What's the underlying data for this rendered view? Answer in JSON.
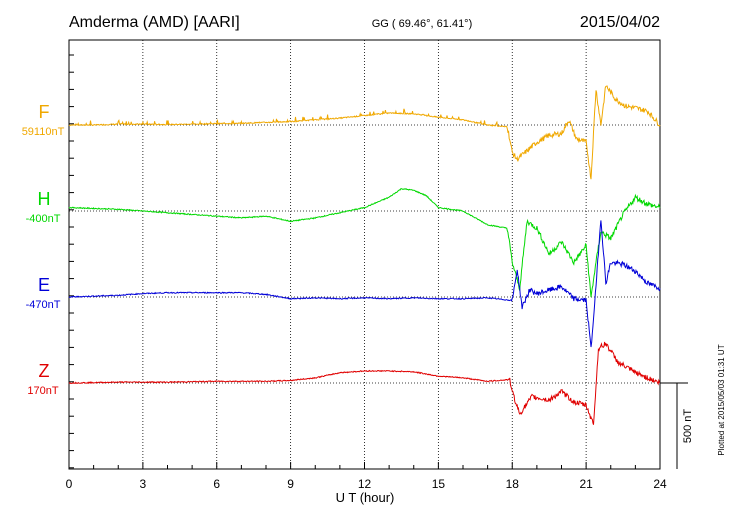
{
  "header": {
    "station": "Amderma (AMD)  [AARI]",
    "coords": "GG ( 69.46°,  61.41°)",
    "date": "2015/04/02"
  },
  "footer_note": "Plotted at 2015/05/03 01:31  UT",
  "chart_data": {
    "type": "line",
    "xlabel": "U T (hour)",
    "x_ticks": [
      0,
      3,
      6,
      9,
      12,
      15,
      18,
      21,
      24
    ],
    "xlim": [
      0,
      24
    ],
    "scale_bar_label": "500 nT",
    "scale_bar_nT": 500,
    "grid": "dotted",
    "series": [
      {
        "name": "F",
        "baseline_label": "59110nT",
        "color": "#f0a800",
        "points": [
          [
            0,
            0
          ],
          [
            1,
            0
          ],
          [
            2,
            5
          ],
          [
            3,
            5
          ],
          [
            4,
            3
          ],
          [
            5,
            5
          ],
          [
            6,
            8
          ],
          [
            7,
            10
          ],
          [
            8,
            15
          ],
          [
            9,
            20
          ],
          [
            10,
            30
          ],
          [
            11,
            40
          ],
          [
            12,
            55
          ],
          [
            13,
            70
          ],
          [
            14,
            65
          ],
          [
            15,
            45
          ],
          [
            16,
            30
          ],
          [
            17,
            0
          ],
          [
            17.8,
            -10
          ],
          [
            18,
            -160
          ],
          [
            18.2,
            -200
          ],
          [
            18.6,
            -150
          ],
          [
            19,
            -100
          ],
          [
            19.5,
            -60
          ],
          [
            20,
            -50
          ],
          [
            20.3,
            30
          ],
          [
            20.6,
            -80
          ],
          [
            21,
            -100
          ],
          [
            21.2,
            -310
          ],
          [
            21.3,
            -50
          ],
          [
            21.4,
            210
          ],
          [
            21.6,
            0
          ],
          [
            21.8,
            230
          ],
          [
            22.2,
            150
          ],
          [
            22.6,
            110
          ],
          [
            23,
            100
          ],
          [
            23.5,
            80
          ],
          [
            24,
            0
          ]
        ]
      },
      {
        "name": "H",
        "baseline_label": "-400nT",
        "color": "#00d800",
        "points": [
          [
            0,
            20
          ],
          [
            1,
            15
          ],
          [
            2,
            10
          ],
          [
            3,
            0
          ],
          [
            4,
            -10
          ],
          [
            5,
            -20
          ],
          [
            6,
            -30
          ],
          [
            7,
            -40
          ],
          [
            8,
            -30
          ],
          [
            9,
            -60
          ],
          [
            10,
            -40
          ],
          [
            11,
            -10
          ],
          [
            12,
            20
          ],
          [
            13,
            80
          ],
          [
            13.5,
            130
          ],
          [
            14,
            120
          ],
          [
            14.5,
            90
          ],
          [
            15,
            20
          ],
          [
            16,
            0
          ],
          [
            17,
            -80
          ],
          [
            17.8,
            -100
          ],
          [
            18,
            -300
          ],
          [
            18.3,
            -450
          ],
          [
            18.6,
            -60
          ],
          [
            19,
            -100
          ],
          [
            19.5,
            -250
          ],
          [
            20,
            -180
          ],
          [
            20.5,
            -300
          ],
          [
            21,
            -200
          ],
          [
            21.2,
            -500
          ],
          [
            21.4,
            -300
          ],
          [
            21.6,
            -120
          ],
          [
            22,
            -160
          ],
          [
            22.5,
            -20
          ],
          [
            23,
            80
          ],
          [
            23.5,
            40
          ],
          [
            24,
            20
          ]
        ]
      },
      {
        "name": "E",
        "baseline_label": "-470nT",
        "color": "#0000d8",
        "points": [
          [
            0,
            0
          ],
          [
            1,
            5
          ],
          [
            2,
            10
          ],
          [
            3,
            20
          ],
          [
            4,
            25
          ],
          [
            5,
            25
          ],
          [
            6,
            25
          ],
          [
            7,
            25
          ],
          [
            8,
            15
          ],
          [
            9,
            -10
          ],
          [
            10,
            -5
          ],
          [
            11,
            -10
          ],
          [
            12,
            -5
          ],
          [
            13,
            -10
          ],
          [
            14,
            -5
          ],
          [
            15,
            -10
          ],
          [
            16,
            -10
          ],
          [
            17,
            -5
          ],
          [
            18,
            -20
          ],
          [
            18.2,
            160
          ],
          [
            18.4,
            -60
          ],
          [
            18.7,
            40
          ],
          [
            19,
            20
          ],
          [
            19.5,
            40
          ],
          [
            20,
            60
          ],
          [
            20.5,
            -10
          ],
          [
            21,
            -20
          ],
          [
            21.2,
            -300
          ],
          [
            21.4,
            60
          ],
          [
            21.6,
            460
          ],
          [
            21.8,
            80
          ],
          [
            22,
            200
          ],
          [
            22.5,
            190
          ],
          [
            23,
            150
          ],
          [
            23.5,
            80
          ],
          [
            24,
            50
          ]
        ]
      },
      {
        "name": "Z",
        "baseline_label": "170nT",
        "color": "#e00000",
        "points": [
          [
            0,
            0
          ],
          [
            2,
            5
          ],
          [
            4,
            5
          ],
          [
            6,
            10
          ],
          [
            8,
            10
          ],
          [
            9,
            15
          ],
          [
            10,
            30
          ],
          [
            11,
            60
          ],
          [
            12,
            70
          ],
          [
            13,
            70
          ],
          [
            14,
            65
          ],
          [
            15,
            40
          ],
          [
            16,
            30
          ],
          [
            17,
            10
          ],
          [
            17.9,
            20
          ],
          [
            18,
            -50
          ],
          [
            18.3,
            -180
          ],
          [
            18.8,
            -80
          ],
          [
            19.5,
            -100
          ],
          [
            20,
            -50
          ],
          [
            20.5,
            -110
          ],
          [
            21,
            -130
          ],
          [
            21.3,
            -240
          ],
          [
            21.5,
            200
          ],
          [
            21.8,
            230
          ],
          [
            22.3,
            120
          ],
          [
            23,
            60
          ],
          [
            24,
            0
          ]
        ]
      }
    ]
  }
}
